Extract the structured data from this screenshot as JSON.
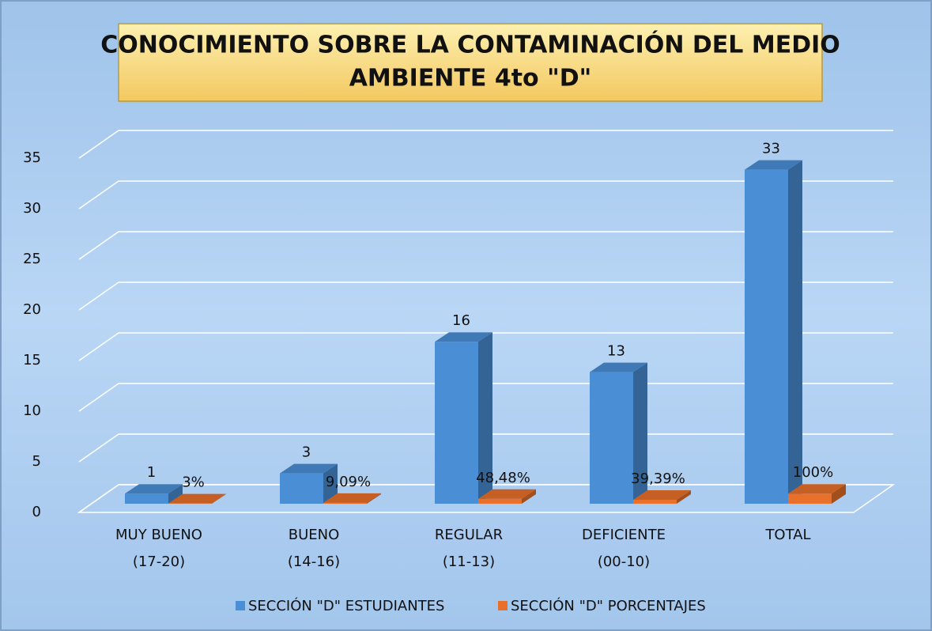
{
  "chart_data": {
    "type": "bar3d",
    "title": [
      "CONOCIMIENTO SOBRE LA CONTAMINACIÓN DEL MEDIO",
      "AMBIENTE 4to \"D\""
    ],
    "categories": [
      [
        "MUY BUENO",
        "(17-20)"
      ],
      [
        "BUENO",
        "(14-16)"
      ],
      [
        "REGULAR",
        "(11-13)"
      ],
      [
        "DEFICIENTE",
        "(00-10)"
      ],
      [
        "TOTAL"
      ]
    ],
    "series": [
      {
        "name": "SECCIÓN \"D\" ESTUDIANTES",
        "color": "#4a8fd6",
        "values": [
          1,
          3,
          16,
          13,
          33
        ]
      },
      {
        "name": "SECCIÓN \"D\" PORCENTAJES",
        "color": "#e8702a",
        "values": [
          0.03,
          0.0909,
          0.4848,
          0.3939,
          1
        ],
        "value_labels": [
          "3%",
          "9,09%",
          "48,48%",
          "39,39%",
          "100%"
        ]
      }
    ],
    "ylim": [
      0,
      35
    ],
    "yticks": [
      0,
      5,
      10,
      15,
      20,
      25,
      30,
      35
    ],
    "grid": true,
    "legend": "bottom"
  }
}
